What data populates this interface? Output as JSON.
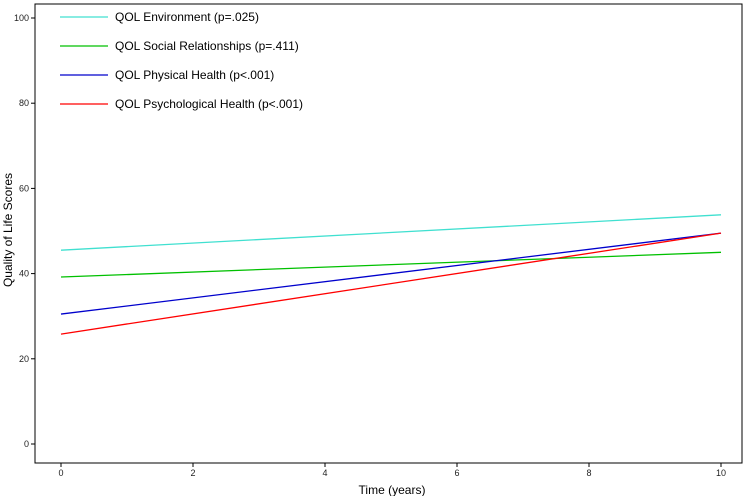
{
  "chart_data": {
    "type": "line",
    "title": "",
    "xlabel": "Time (years)",
    "ylabel": "Quality of Life Scores",
    "xlim": [
      0,
      10
    ],
    "ylim": [
      0,
      100
    ],
    "x_ticks": [
      0,
      2,
      4,
      6,
      8,
      10
    ],
    "y_ticks": [
      0,
      20,
      40,
      60,
      80,
      100
    ],
    "grid": false,
    "legend_position": "top-left",
    "x": [
      0,
      10
    ],
    "series": [
      {
        "name": "QOL Environment (p=.025)",
        "color": "#40E0D0",
        "values": [
          45.5,
          53.8
        ]
      },
      {
        "name": "QOL Social Relationships (p=.411)",
        "color": "#00C000",
        "values": [
          39.2,
          45.0
        ]
      },
      {
        "name": "QOL Physical Health (p<.001)",
        "color": "#0000CC",
        "values": [
          30.5,
          49.5
        ]
      },
      {
        "name": "QOL Psychological Health (p<.001)",
        "color": "#FF0000",
        "values": [
          25.8,
          49.5
        ]
      }
    ]
  }
}
